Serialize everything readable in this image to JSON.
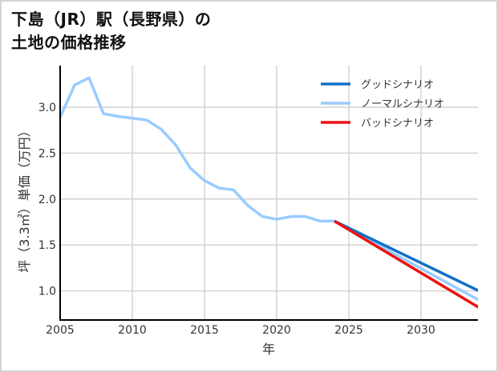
{
  "title_line1": "下島（JR）駅（長野県）の",
  "title_line2": "土地の価格推移",
  "chart_data": {
    "type": "line",
    "title": "下島（JR）駅（長野県）の土地の価格推移",
    "xlabel": "年",
    "ylabel": "坪（3.3㎡）単価（万円）",
    "xlim": [
      2005,
      2034
    ],
    "ylim": [
      0.7,
      3.45
    ],
    "xticks": [
      "2005",
      "2010",
      "2015",
      "2020",
      "2025",
      "2030"
    ],
    "yticks": [
      "1.0",
      "1.5",
      "2.0",
      "2.5",
      "3.0"
    ],
    "grid": true,
    "legend_position": "upper right",
    "series": [
      {
        "name": "グッドシナリオ",
        "color": "#1170c8",
        "x": [
          2024,
          2034
        ],
        "values": [
          1.76,
          1.0
        ]
      },
      {
        "name": "ノーマルシナリオ",
        "color": "#99ccff",
        "x": [
          2005,
          2006,
          2007,
          2008,
          2009,
          2010,
          2011,
          2012,
          2013,
          2014,
          2015,
          2016,
          2017,
          2018,
          2019,
          2020,
          2021,
          2022,
          2023,
          2024,
          2034
        ],
        "values": [
          2.89,
          3.24,
          3.32,
          2.93,
          2.9,
          2.88,
          2.86,
          2.76,
          2.59,
          2.34,
          2.2,
          2.12,
          2.1,
          1.93,
          1.81,
          1.78,
          1.81,
          1.81,
          1.76,
          1.76,
          0.9
        ]
      },
      {
        "name": "バッドシナリオ",
        "color": "#ee1111",
        "x": [
          2024,
          2034
        ],
        "values": [
          1.76,
          0.82
        ]
      }
    ]
  }
}
